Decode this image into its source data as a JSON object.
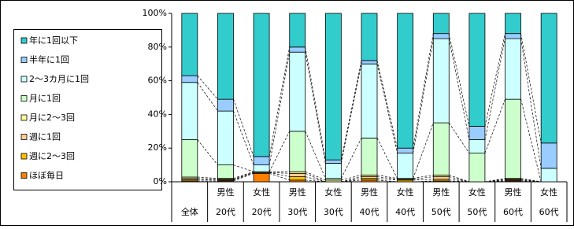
{
  "chart_data": {
    "type": "stacked_bar_100",
    "categories": [
      [
        "全体"
      ],
      [
        "男性",
        "20代"
      ],
      [
        "女性",
        "20代"
      ],
      [
        "男性",
        "30代"
      ],
      [
        "女性",
        "30代"
      ],
      [
        "男性",
        "40代"
      ],
      [
        "女性",
        "40代"
      ],
      [
        "男性",
        "50代"
      ],
      [
        "女性",
        "50代"
      ],
      [
        "男性",
        "60代"
      ],
      [
        "女性",
        "60代"
      ]
    ],
    "series": [
      {
        "name": "ほぼ毎日",
        "color": "#ff8000",
        "values": [
          0.5,
          0.5,
          5,
          1,
          0,
          1,
          0,
          0.5,
          0,
          0.5,
          0
        ]
      },
      {
        "name": "週に2～3回",
        "color": "#ffc000",
        "values": [
          0.7,
          0.5,
          0.5,
          2,
          0,
          1,
          1,
          1,
          0,
          0.5,
          0
        ]
      },
      {
        "name": "週に1回",
        "color": "#ffcc99",
        "values": [
          0.8,
          0.5,
          0,
          2,
          0,
          1,
          0.5,
          1.5,
          0,
          0.5,
          0
        ]
      },
      {
        "name": "月に2～3回",
        "color": "#ffff99",
        "values": [
          0.8,
          0.5,
          0.5,
          1,
          1,
          1,
          0.5,
          1,
          0,
          0.5,
          0
        ]
      },
      {
        "name": "月に1回",
        "color": "#ccffcc",
        "values": [
          22.2,
          8,
          0,
          24,
          1,
          22,
          0,
          31,
          17,
          47,
          0
        ]
      },
      {
        "name": "2～3カ月に1回",
        "color": "#ccffff",
        "values": [
          34,
          32,
          4,
          47,
          9,
          44,
          15,
          50,
          8,
          36,
          8
        ]
      },
      {
        "name": "半年に1回",
        "color": "#99ccff",
        "values": [
          4,
          7,
          5,
          3,
          2,
          2,
          3,
          3,
          8,
          3,
          15
        ]
      },
      {
        "name": "年に1回以下",
        "color": "#33cccc",
        "values": [
          37,
          51,
          85,
          20,
          87,
          28,
          80,
          12,
          67,
          12,
          77
        ]
      }
    ],
    "ylim": [
      0,
      100
    ],
    "yticks": [
      {
        "value": 0,
        "label": "0%"
      },
      {
        "value": 20,
        "label": "20%"
      },
      {
        "value": 40,
        "label": "40%"
      },
      {
        "value": 60,
        "label": "60%"
      },
      {
        "value": 80,
        "label": "80%"
      },
      {
        "value": 100,
        "label": "100%"
      }
    ],
    "legend": "left"
  }
}
